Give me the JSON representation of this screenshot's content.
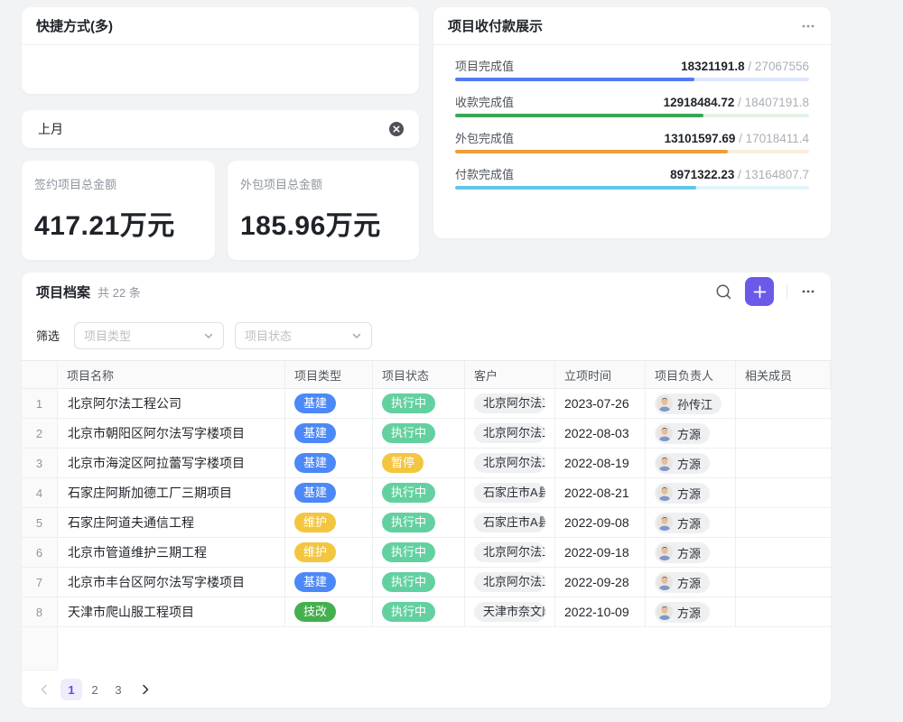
{
  "colors": {
    "accent": "#6B5AE8",
    "page_bg": "#F2F3F5",
    "active_page_bg": "#EFECFC",
    "active_page_text": "#5E4FE0"
  },
  "shortcut_card": {
    "title": "快捷方式(多)"
  },
  "time_filter": {
    "value": "上月",
    "clear_icon": "circle-x"
  },
  "metric_cards": [
    {
      "label": "签约项目总金额",
      "value": "417.21万元"
    },
    {
      "label": "外包项目总金额",
      "value": "185.96万元"
    }
  ],
  "payment_card": {
    "title": "项目收付款展示",
    "more_icon": "ellipsis",
    "separator": " / ",
    "rows": [
      {
        "label": "项目完成值",
        "value": "18321191.8",
        "total": "27067556",
        "pct": 67.7,
        "color": "#5179F5",
        "track": "#DFE7FC"
      },
      {
        "label": "收款完成值",
        "value": "12918484.72",
        "total": "18407191.8",
        "pct": 70.2,
        "color": "#39A854",
        "track": "#E3F2E6"
      },
      {
        "label": "外包完成值",
        "value": "13101597.69",
        "total": "17018411.4",
        "pct": 77.0,
        "color": "#F09E38",
        "track": "#FAEEDF"
      },
      {
        "label": "付款完成值",
        "value": "8971322.23",
        "total": "13164807.7",
        "pct": 68.1,
        "color": "#64C5EA",
        "track": "#E2F4FB"
      }
    ]
  },
  "archive": {
    "title": "项目档案",
    "count": "共 22 条",
    "filter_label": "筛选",
    "filters": [
      {
        "placeholder": "项目类型"
      },
      {
        "placeholder": "项目状态"
      }
    ],
    "columns": [
      "",
      "项目名称",
      "项目类型",
      "项目状态",
      "客户",
      "立项时间",
      "项目负责人",
      "相关成员"
    ],
    "rows": [
      {
        "num": "1",
        "name": "北京阿尔法工程公司",
        "type": "基建",
        "type_color": "#4C88F7",
        "status": "执行中",
        "status_color": "#63D0A0",
        "customer": "北京阿尔法工",
        "date": "2023-07-26",
        "owner": "孙传江",
        "members": ""
      },
      {
        "num": "2",
        "name": "北京市朝阳区阿尔法写字楼项目",
        "type": "基建",
        "type_color": "#4C88F7",
        "status": "执行中",
        "status_color": "#63D0A0",
        "customer": "北京阿尔法工",
        "date": "2022-08-03",
        "owner": "方源",
        "members": ""
      },
      {
        "num": "3",
        "name": "北京市海淀区阿拉蕾写字楼项目",
        "type": "基建",
        "type_color": "#4C88F7",
        "status": "暂停",
        "status_color": "#F3C63F",
        "customer": "北京阿尔法工",
        "date": "2022-08-19",
        "owner": "方源",
        "members": ""
      },
      {
        "num": "4",
        "name": "石家庄阿斯加德工厂三期项目",
        "type": "基建",
        "type_color": "#4C88F7",
        "status": "执行中",
        "status_color": "#63D0A0",
        "customer": "石家庄市A县",
        "date": "2022-08-21",
        "owner": "方源",
        "members": ""
      },
      {
        "num": "5",
        "name": "石家庄阿道夫通信工程",
        "type": "维护",
        "type_color": "#F3C63F",
        "status": "执行中",
        "status_color": "#63D0A0",
        "customer": "石家庄市A县",
        "date": "2022-09-08",
        "owner": "方源",
        "members": ""
      },
      {
        "num": "6",
        "name": "北京市管道维护三期工程",
        "type": "维护",
        "type_color": "#F3C63F",
        "status": "执行中",
        "status_color": "#63D0A0",
        "customer": "北京阿尔法工",
        "date": "2022-09-18",
        "owner": "方源",
        "members": ""
      },
      {
        "num": "7",
        "name": "北京市丰台区阿尔法写字楼项目",
        "type": "基建",
        "type_color": "#4C88F7",
        "status": "执行中",
        "status_color": "#63D0A0",
        "customer": "北京阿尔法工",
        "date": "2022-09-28",
        "owner": "方源",
        "members": ""
      },
      {
        "num": "8",
        "name": "天津市爬山服工程项目",
        "type": "技改",
        "type_color": "#44AF4F",
        "status": "执行中",
        "status_color": "#63D0A0",
        "customer": "天津市奈文摩",
        "date": "2022-10-09",
        "owner": "方源",
        "members": ""
      }
    ],
    "pagination": {
      "pages": [
        "1",
        "2",
        "3"
      ],
      "active_index": 0
    }
  }
}
